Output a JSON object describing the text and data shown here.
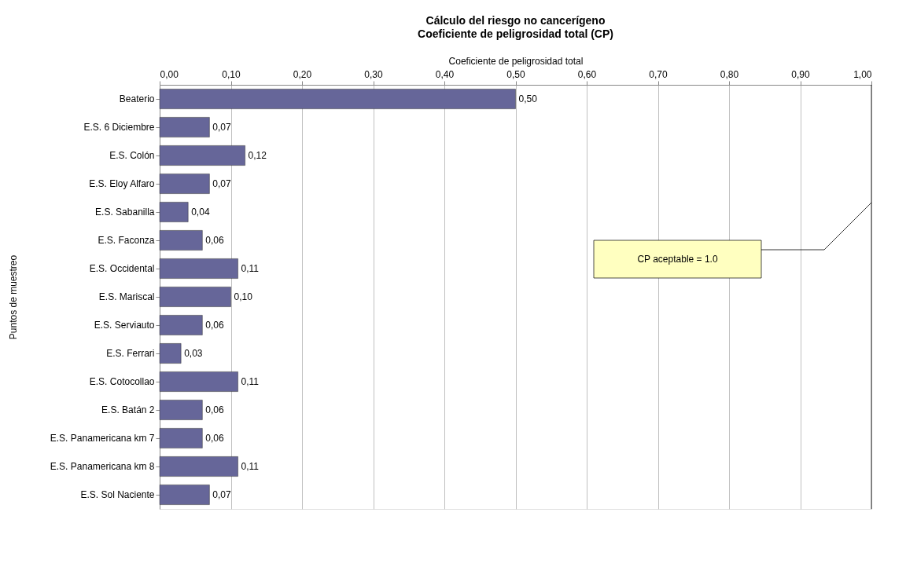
{
  "chart_data": {
    "type": "bar",
    "orientation": "horizontal",
    "title": "Cálculo del riesgo no cancerígeno",
    "subtitle": "Coeficiente de peligrosidad total (CP)",
    "xlabel": "Coeficiente de peligrosidad total",
    "ylabel": "Puntos de muestreo",
    "categories": [
      "Beaterio",
      "E.S. 6 Diciembre",
      "E.S. Colón",
      "E.S. Eloy Alfaro",
      "E.S. Sabanilla",
      "E.S. Faconza",
      "E.S. Occidental",
      "E.S. Mariscal",
      "E.S. Serviauto",
      "E.S. Ferrari",
      "E.S. Cotocollao",
      "E.S. Batán 2",
      "E.S. Panamericana km 7",
      "E.S. Panamericana km 8",
      "E.S. Sol Naciente"
    ],
    "values": [
      0.5,
      0.07,
      0.12,
      0.07,
      0.04,
      0.06,
      0.11,
      0.1,
      0.06,
      0.03,
      0.11,
      0.06,
      0.06,
      0.11,
      0.07
    ],
    "value_labels": [
      "0,50",
      "0,07",
      "0,12",
      "0,07",
      "0,04",
      "0,06",
      "0,11",
      "0,10",
      "0,06",
      "0,03",
      "0,11",
      "0,06",
      "0,06",
      "0,11",
      "0,07"
    ],
    "color": "#666699",
    "xlim": [
      0,
      1
    ],
    "xticks": [
      {
        "value": 0,
        "label": "0,00"
      },
      {
        "value": 0.1,
        "label": "0,10"
      },
      {
        "value": 0.2,
        "label": "0,20"
      },
      {
        "value": 0.3,
        "label": "0,30"
      },
      {
        "value": 0.4,
        "label": "0,40"
      },
      {
        "value": 0.5,
        "label": "0,50"
      },
      {
        "value": 0.6,
        "label": "0,60"
      },
      {
        "value": 0.7,
        "label": "0,70"
      },
      {
        "value": 0.8,
        "label": "0,80"
      },
      {
        "value": 0.9,
        "label": "0,90"
      },
      {
        "value": 1,
        "label": "1,00"
      }
    ],
    "grid": "x",
    "legend": false,
    "ref_lines": [
      {
        "axis": "x",
        "value": 1.0,
        "label": "CP aceptable = 1.0",
        "color": "#000000"
      }
    ]
  }
}
